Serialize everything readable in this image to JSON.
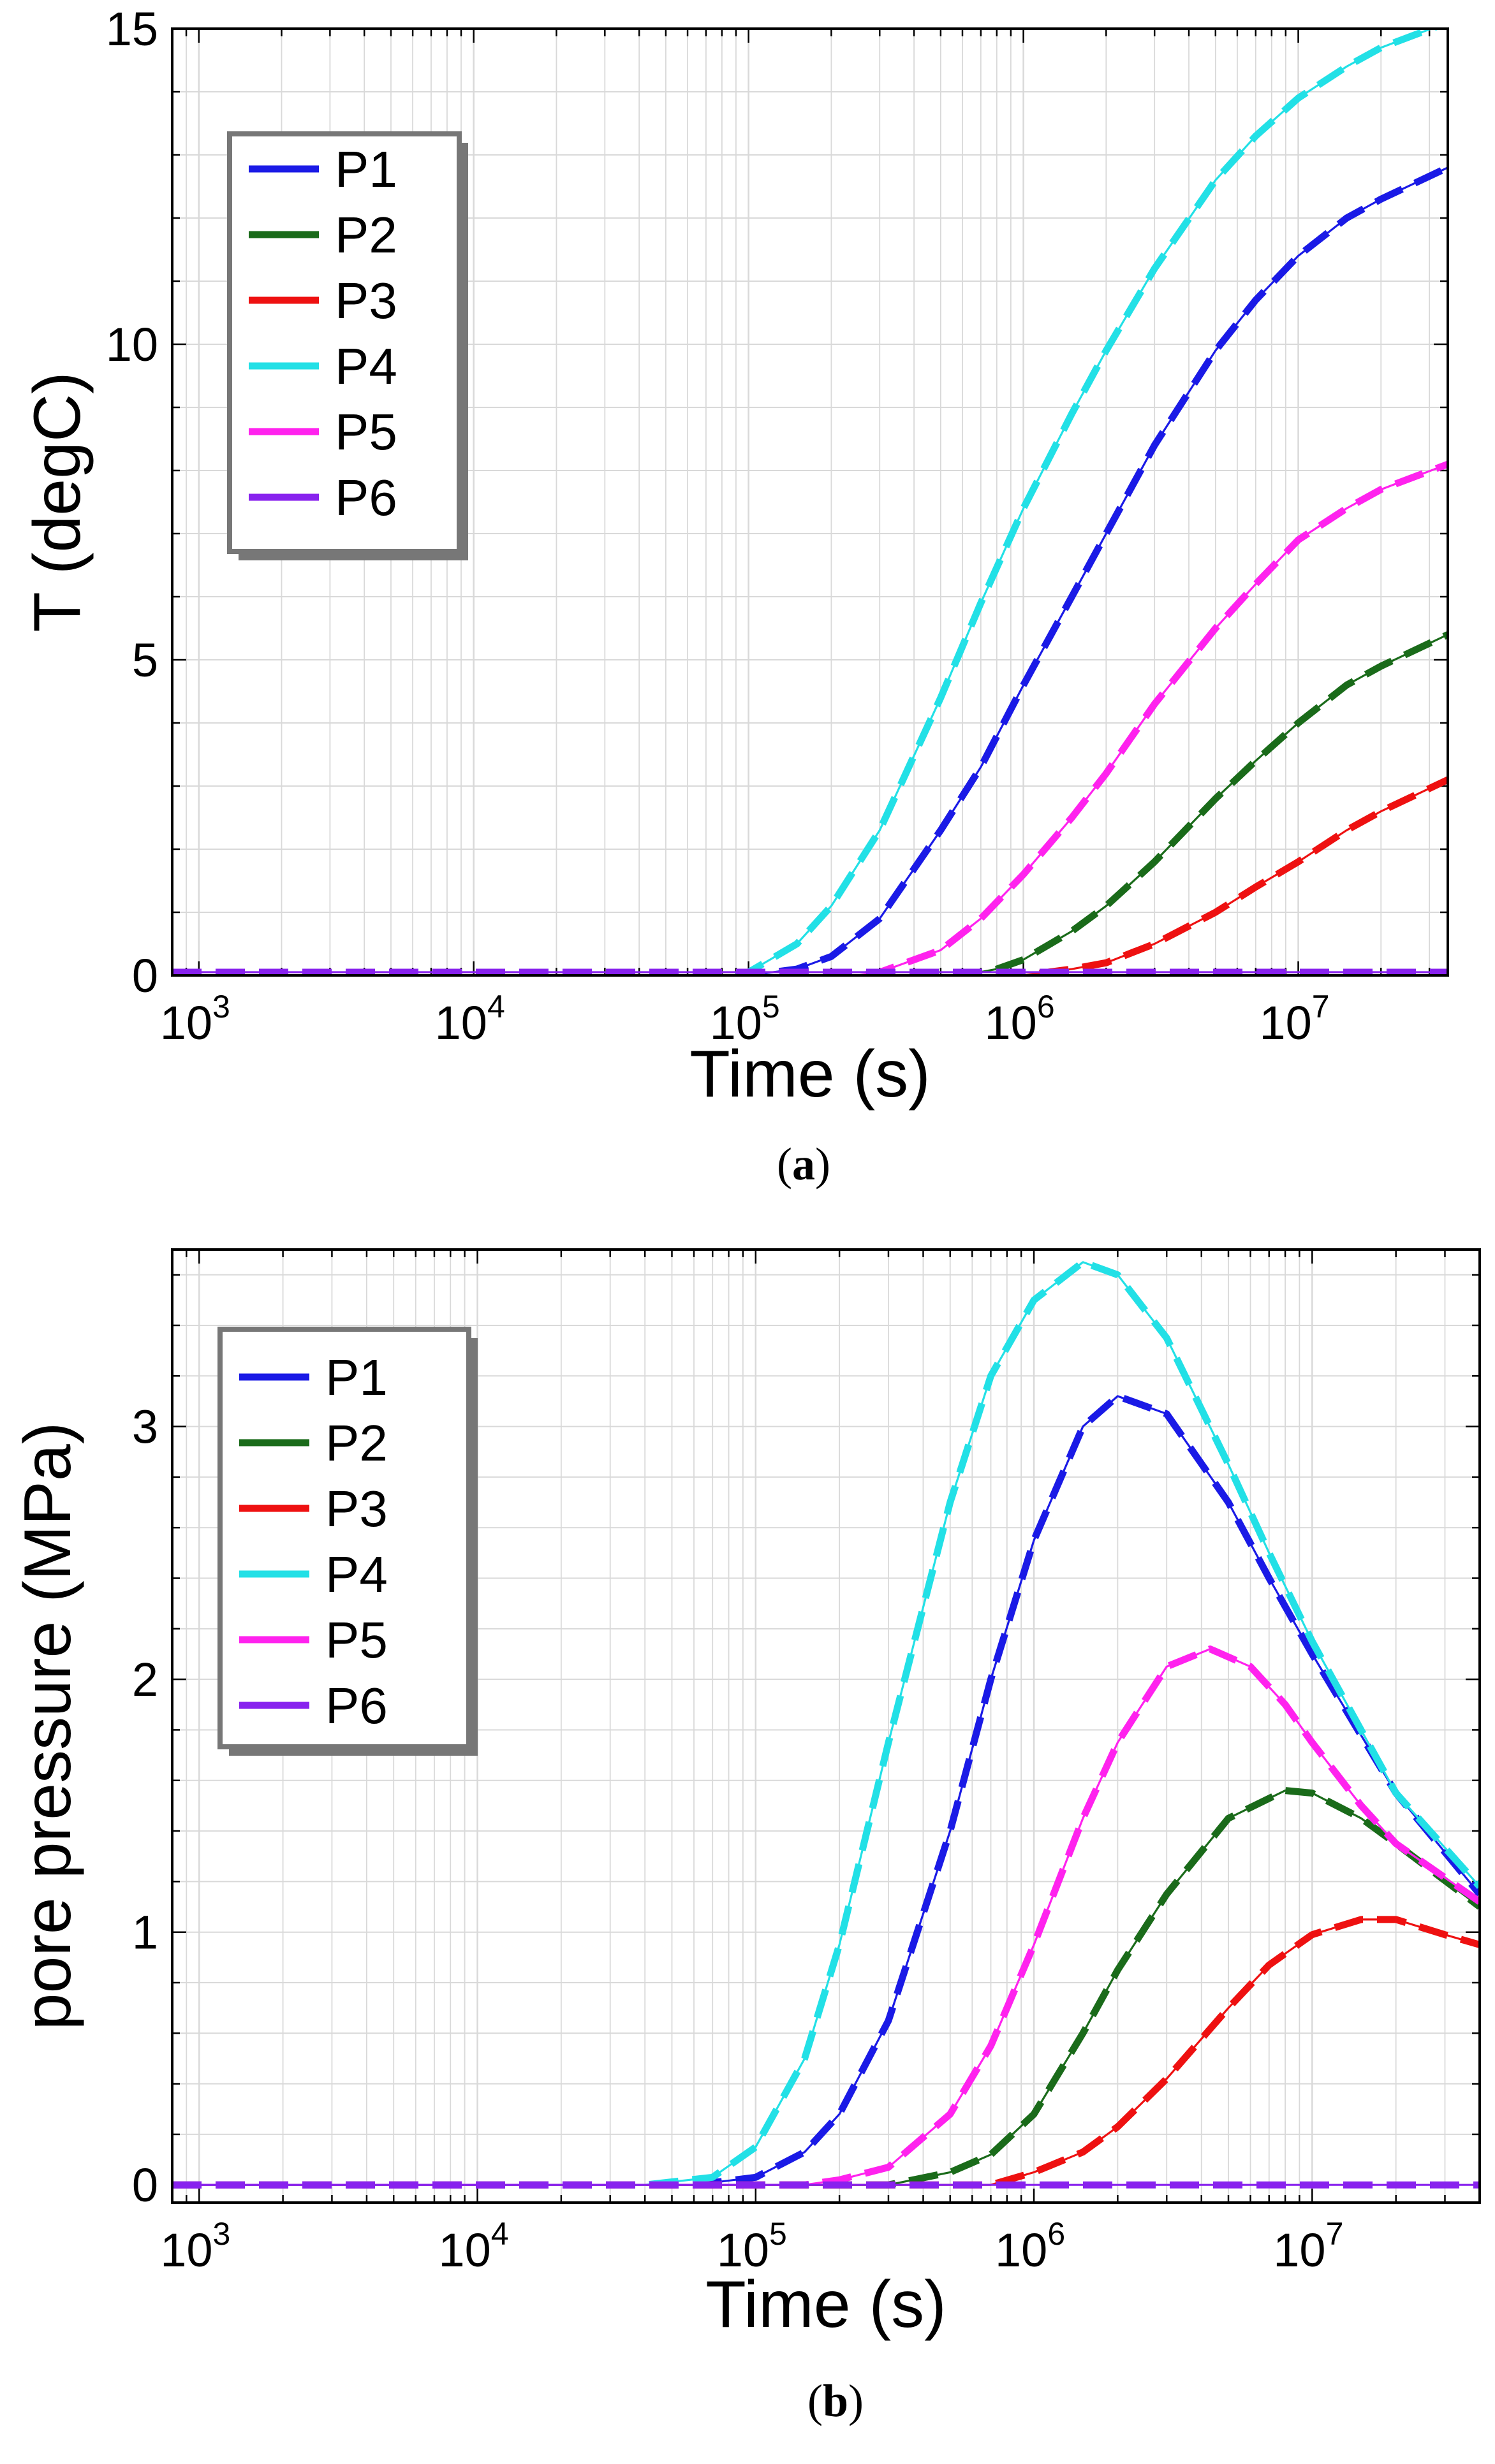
{
  "chart_data": [
    {
      "panel_label": "(a)",
      "caption_parts": [
        "(",
        "a",
        ")"
      ],
      "type": "line",
      "x_scale": "log",
      "xlabel": "Time (s)",
      "ylabel": "T (degC)",
      "xlim": [
        800,
        35000000
      ],
      "ylim": [
        0,
        15
      ],
      "xticks": [
        {
          "value": 1000,
          "base": "10",
          "exp": "3"
        },
        {
          "value": 10000,
          "base": "10",
          "exp": "4"
        },
        {
          "value": 100000,
          "base": "10",
          "exp": "5"
        },
        {
          "value": 1000000,
          "base": "10",
          "exp": "6"
        },
        {
          "value": 10000000,
          "base": "10",
          "exp": "7"
        }
      ],
      "yticks": [
        {
          "value": 0,
          "label": "0"
        },
        {
          "value": 5,
          "label": "5"
        },
        {
          "value": 10,
          "label": "10"
        },
        {
          "value": 15,
          "label": "15"
        }
      ],
      "grid": true,
      "legend_position": "top-left",
      "series": [
        {
          "name": "P1",
          "color": "#1a1ae6",
          "x": [
            800,
            100000,
            150000,
            200000,
            300000,
            500000,
            700000,
            1000000,
            1500000,
            2000000,
            3000000,
            5000000,
            7000000,
            10000000,
            15000000,
            20000000,
            35000000
          ],
          "y": [
            0,
            0,
            0.1,
            0.3,
            0.9,
            2.3,
            3.3,
            4.6,
            6.0,
            7.0,
            8.4,
            9.9,
            10.7,
            11.4,
            12.0,
            12.3,
            12.8
          ]
        },
        {
          "name": "P2",
          "color": "#1a6b1a",
          "x": [
            800,
            600000,
            800000,
            1000000,
            1500000,
            2000000,
            3000000,
            5000000,
            7000000,
            10000000,
            15000000,
            20000000,
            35000000
          ],
          "y": [
            0,
            0,
            0.1,
            0.25,
            0.7,
            1.1,
            1.8,
            2.8,
            3.4,
            4.0,
            4.6,
            4.9,
            5.4
          ]
        },
        {
          "name": "P3",
          "color": "#ee1111",
          "x": [
            800,
            1000000,
            1500000,
            2000000,
            3000000,
            5000000,
            7000000,
            10000000,
            15000000,
            20000000,
            35000000
          ],
          "y": [
            0,
            0,
            0.1,
            0.2,
            0.5,
            1.0,
            1.4,
            1.8,
            2.3,
            2.6,
            3.1
          ]
        },
        {
          "name": "P4",
          "color": "#22e0e6",
          "x": [
            800,
            90000,
            100000,
            150000,
            200000,
            300000,
            500000,
            700000,
            1000000,
            1500000,
            2000000,
            3000000,
            5000000,
            7000000,
            10000000,
            15000000,
            20000000,
            35000000
          ],
          "y": [
            0,
            0,
            0.05,
            0.5,
            1.1,
            2.3,
            4.4,
            5.9,
            7.4,
            8.9,
            9.9,
            11.2,
            12.6,
            13.3,
            13.9,
            14.4,
            14.7,
            15.1
          ]
        },
        {
          "name": "P5",
          "color": "#ff22ee",
          "x": [
            800,
            250000,
            300000,
            500000,
            700000,
            1000000,
            1500000,
            2000000,
            3000000,
            5000000,
            7000000,
            10000000,
            15000000,
            20000000,
            35000000
          ],
          "y": [
            0,
            0,
            0.05,
            0.4,
            0.9,
            1.6,
            2.5,
            3.2,
            4.3,
            5.5,
            6.2,
            6.9,
            7.4,
            7.7,
            8.1
          ]
        },
        {
          "name": "P6",
          "color": "#8822ee",
          "x": [
            800,
            35000000
          ],
          "y": [
            0.05,
            0.05
          ]
        }
      ]
    },
    {
      "panel_label": "(b)",
      "caption_parts": [
        "(",
        "b",
        ")"
      ],
      "type": "line",
      "x_scale": "log",
      "xlabel": "Time (s)",
      "ylabel": "pore pressure (MPa)",
      "xlim": [
        800,
        40000000
      ],
      "ylim": [
        -0.07,
        3.7
      ],
      "xticks": [
        {
          "value": 1000,
          "base": "10",
          "exp": "3"
        },
        {
          "value": 10000,
          "base": "10",
          "exp": "4"
        },
        {
          "value": 100000,
          "base": "10",
          "exp": "5"
        },
        {
          "value": 1000000,
          "base": "10",
          "exp": "6"
        },
        {
          "value": 10000000,
          "base": "10",
          "exp": "7"
        }
      ],
      "yticks": [
        {
          "value": 0,
          "label": "0"
        },
        {
          "value": 1,
          "label": "1"
        },
        {
          "value": 2,
          "label": "2"
        },
        {
          "value": 3,
          "label": "3"
        }
      ],
      "grid": true,
      "legend_position": "top-left",
      "series": [
        {
          "name": "P1",
          "color": "#1a1ae6",
          "x": [
            800,
            60000,
            100000,
            150000,
            200000,
            300000,
            500000,
            700000,
            1000000,
            1500000,
            2000000,
            3000000,
            5000000,
            7000000,
            10000000,
            20000000,
            40000000
          ],
          "y": [
            0,
            0,
            0.03,
            0.13,
            0.28,
            0.65,
            1.4,
            2.0,
            2.55,
            3.0,
            3.12,
            3.05,
            2.7,
            2.4,
            2.1,
            1.55,
            1.15
          ]
        },
        {
          "name": "P2",
          "color": "#1a6b1a",
          "x": [
            800,
            300000,
            500000,
            700000,
            1000000,
            1500000,
            2000000,
            3000000,
            5000000,
            8000000,
            10000000,
            15000000,
            20000000,
            40000000
          ],
          "y": [
            0,
            0,
            0.05,
            0.12,
            0.28,
            0.6,
            0.85,
            1.15,
            1.45,
            1.56,
            1.55,
            1.45,
            1.35,
            1.1
          ]
        },
        {
          "name": "P3",
          "color": "#ee1111",
          "x": [
            800,
            700000,
            1000000,
            1500000,
            2000000,
            3000000,
            5000000,
            7000000,
            10000000,
            15000000,
            20000000,
            30000000,
            40000000
          ],
          "y": [
            0,
            0,
            0.05,
            0.13,
            0.23,
            0.42,
            0.7,
            0.87,
            0.99,
            1.05,
            1.05,
            0.99,
            0.95
          ]
        },
        {
          "name": "P4",
          "color": "#22e0e6",
          "x": [
            800,
            40000,
            70000,
            100000,
            150000,
            200000,
            300000,
            500000,
            700000,
            1000000,
            1500000,
            2000000,
            3000000,
            5000000,
            7000000,
            10000000,
            20000000,
            40000000
          ],
          "y": [
            0,
            0,
            0.03,
            0.15,
            0.5,
            0.95,
            1.75,
            2.7,
            3.2,
            3.5,
            3.65,
            3.6,
            3.35,
            2.85,
            2.5,
            2.15,
            1.55,
            1.18
          ]
        },
        {
          "name": "P5",
          "color": "#ff22ee",
          "x": [
            800,
            150000,
            200000,
            300000,
            500000,
            700000,
            1000000,
            1500000,
            2000000,
            3000000,
            4300000,
            6000000,
            8000000,
            10000000,
            15000000,
            20000000,
            40000000
          ],
          "y": [
            0,
            0,
            0.02,
            0.07,
            0.28,
            0.55,
            0.95,
            1.45,
            1.75,
            2.05,
            2.12,
            2.05,
            1.9,
            1.75,
            1.5,
            1.35,
            1.12
          ]
        },
        {
          "name": "P6",
          "color": "#8822ee",
          "x": [
            800,
            40000000
          ],
          "y": [
            0,
            0
          ]
        }
      ]
    }
  ]
}
